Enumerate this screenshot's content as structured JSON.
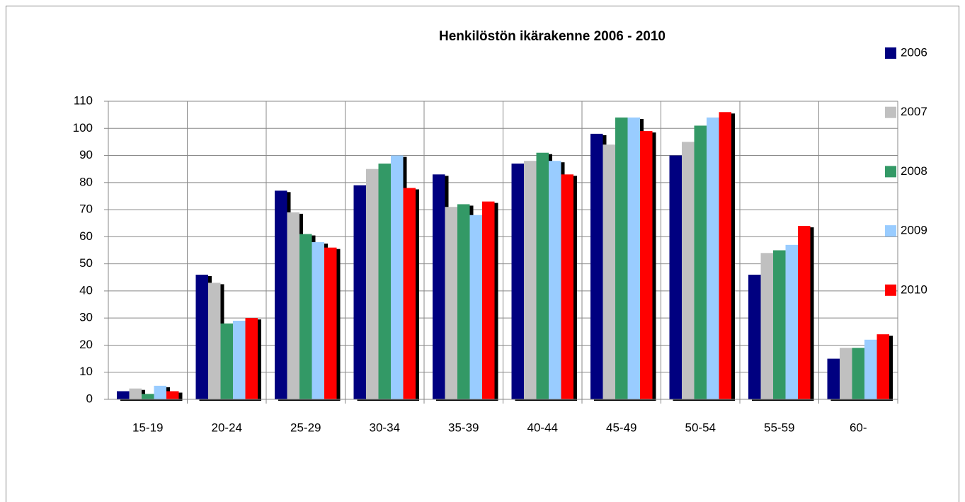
{
  "chart_data": {
    "type": "bar",
    "title": "Henkilöstön ikärakenne 2006 - 2010",
    "categories": [
      "15-19",
      "20-24",
      "25-29",
      "30-34",
      "35-39",
      "40-44",
      "45-49",
      "50-54",
      "55-59",
      "60-"
    ],
    "series": [
      {
        "name": "2006",
        "color": "#000080",
        "values": [
          3,
          46,
          77,
          79,
          83,
          87,
          98,
          90,
          46,
          15
        ]
      },
      {
        "name": "2007",
        "color": "#c0c0c0",
        "values": [
          4,
          43,
          69,
          85,
          71,
          88,
          94,
          95,
          54,
          19
        ]
      },
      {
        "name": "2008",
        "color": "#339966",
        "values": [
          2,
          28,
          61,
          87,
          72,
          91,
          104,
          101,
          55,
          19
        ]
      },
      {
        "name": "2009",
        "color": "#99ccff",
        "values": [
          5,
          29,
          58,
          90,
          68,
          88,
          104,
          104,
          57,
          22
        ]
      },
      {
        "name": "2010",
        "color": "#ff0000",
        "values": [
          3,
          30,
          56,
          78,
          73,
          83,
          99,
          106,
          64,
          24
        ]
      }
    ],
    "ylim": [
      0,
      110
    ],
    "yticks": [
      0,
      10,
      20,
      30,
      40,
      50,
      60,
      70,
      80,
      90,
      100,
      110
    ],
    "grid": true,
    "legend": "right"
  }
}
